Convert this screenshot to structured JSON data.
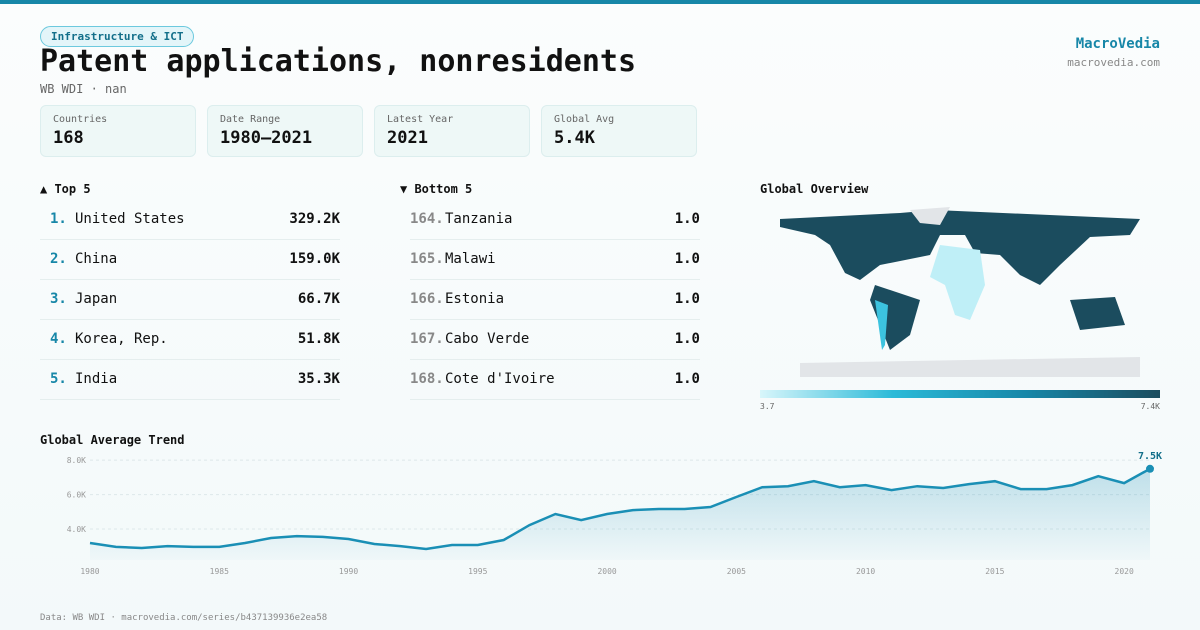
{
  "header": {
    "tag": "Infrastructure & ICT",
    "title": "Patent applications, nonresidents",
    "subtitle": "WB WDI · nan",
    "brand": "MacroVedia",
    "brand_url": "macrovedia.com"
  },
  "stats": [
    {
      "label": "Countries",
      "value": "168"
    },
    {
      "label": "Date Range",
      "value": "1980–2021"
    },
    {
      "label": "Latest Year",
      "value": "2021"
    },
    {
      "label": "Global Avg",
      "value": "5.4K"
    }
  ],
  "top": {
    "heading": "▲ Top 5",
    "rows": [
      [
        "1.",
        "United States",
        "329.2K"
      ],
      [
        "2.",
        "China",
        "159.0K"
      ],
      [
        "3.",
        "Japan",
        "66.7K"
      ],
      [
        "4.",
        "Korea, Rep.",
        "51.8K"
      ],
      [
        "5.",
        "India",
        "35.3K"
      ]
    ]
  },
  "bottom": {
    "heading": "▼ Bottom 5",
    "rows": [
      [
        "164.",
        "Tanzania",
        "1.0"
      ],
      [
        "165.",
        "Malawi",
        "1.0"
      ],
      [
        "166.",
        "Estonia",
        "1.0"
      ],
      [
        "167.",
        "Cabo Verde",
        "1.0"
      ],
      [
        "168.",
        "Cote d'Ivoire",
        "1.0"
      ]
    ]
  },
  "map": {
    "heading": "Global Overview",
    "legend_min": "3.7",
    "legend_max": "7.4K"
  },
  "chart_data": {
    "type": "line",
    "title": "Global Average Trend",
    "color": "#1a8fb5",
    "x": [
      1980,
      1981,
      1982,
      1983,
      1984,
      1985,
      1986,
      1987,
      1988,
      1989,
      1990,
      1991,
      1992,
      1993,
      1994,
      1995,
      1996,
      1997,
      1998,
      1999,
      2000,
      2001,
      2002,
      2003,
      2004,
      2005,
      2006,
      2007,
      2008,
      2009,
      2010,
      2011,
      2012,
      2013,
      2014,
      2015,
      2016,
      2017,
      2018,
      2019,
      2020,
      2021
    ],
    "values": [
      3190,
      2960,
      2900,
      3010,
      2960,
      2960,
      3190,
      3480,
      3590,
      3540,
      3420,
      3130,
      3010,
      2840,
      3070,
      3070,
      3360,
      4230,
      4870,
      4520,
      4870,
      5100,
      5160,
      5160,
      5280,
      5860,
      6430,
      6490,
      6780,
      6430,
      6550,
      6260,
      6490,
      6380,
      6610,
      6780,
      6320,
      6320,
      6550,
      7070,
      6670,
      7500
    ],
    "value_labels": [
      null,
      null,
      null,
      null,
      null,
      null,
      null,
      null,
      null,
      null,
      null,
      null,
      null,
      null,
      null,
      null,
      null,
      null,
      null,
      null,
      null,
      null,
      null,
      null,
      null,
      null,
      null,
      null,
      null,
      null,
      null,
      null,
      null,
      null,
      null,
      null,
      null,
      null,
      null,
      null,
      null,
      "7.5K"
    ],
    "xlim": [
      1980,
      2021
    ],
    "xticks": [
      1980,
      1985,
      1990,
      1995,
      2000,
      2005,
      2010,
      2015,
      2020
    ],
    "ylim": [
      2200,
      8300
    ],
    "yticks": [
      {
        "value": 4000,
        "label": "4.0K"
      },
      {
        "value": 6000,
        "label": "6.0K"
      },
      {
        "value": 8000,
        "label": "8.0K"
      }
    ],
    "grid": true
  },
  "footer": "Data: WB WDI · macrovedia.com/series/b437139936e2ea58"
}
